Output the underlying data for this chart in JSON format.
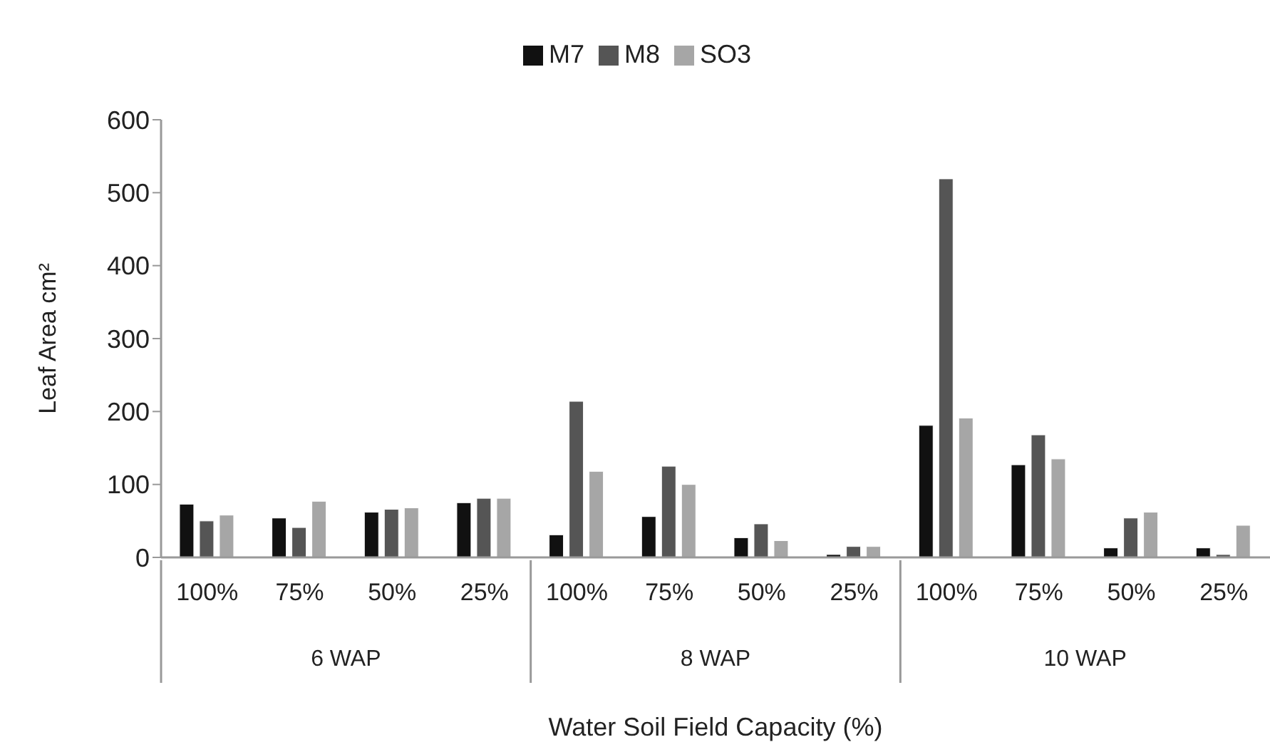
{
  "chart_data": {
    "type": "bar",
    "ylabel": "Leaf Area cm²",
    "xlabel": "Water Soil Field Capacity (%)",
    "categories": [
      "100%",
      "75%",
      "50%",
      "25%",
      "100%",
      "75%",
      "50%",
      "25%",
      "100%",
      "75%",
      "50%",
      "25%"
    ],
    "series": [
      {
        "name": "M7",
        "color": "#111111",
        "values": [
          73,
          54,
          62,
          75,
          31,
          56,
          27,
          4,
          181,
          127,
          13,
          13
        ]
      },
      {
        "name": "M8",
        "color": "#555555",
        "values": [
          50,
          41,
          66,
          81,
          214,
          125,
          46,
          15,
          519,
          168,
          54,
          4
        ]
      },
      {
        "name": "SO3",
        "color": "#a6a6a6",
        "values": [
          58,
          77,
          68,
          81,
          118,
          100,
          23,
          15,
          191,
          135,
          62,
          44
        ]
      }
    ],
    "annotations": [
      "6 WAP",
      "8 WAP",
      "10 WAP"
    ],
    "ylim": [
      0,
      600
    ],
    "yticks": [
      0,
      100,
      200,
      300,
      400,
      500,
      600
    ],
    "grid": false,
    "legend": "top"
  }
}
